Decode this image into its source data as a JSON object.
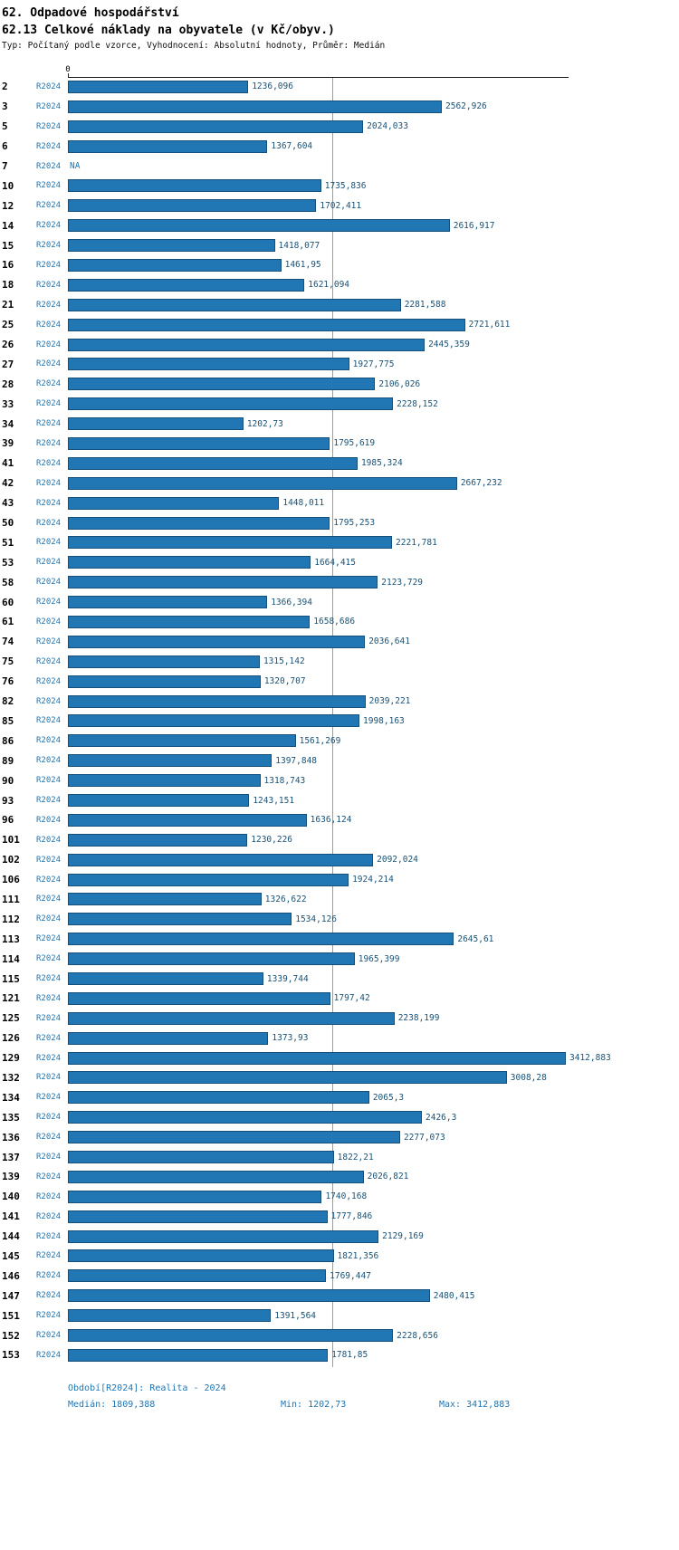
{
  "header": {
    "title": "62. Odpadové hospodářství",
    "subtitle": "62.13 Celkové náklady na obyvatele (v Kč/obyv.)",
    "meta": "Typ: Počítaný podle vzorce, Vyhodnocení: Absolutní hodnoty, Průměr: Medián"
  },
  "chart_data": {
    "type": "bar",
    "orientation": "horizontal",
    "title": "62.13 Celkové náklady na obyvatele (v Kč/obyv.)",
    "series_label": "R2024",
    "axis_zero_label": "0",
    "x_min": 0,
    "x_max": 3412.883,
    "median_value": 1809.388,
    "na_text": "NA",
    "bar_color": "#2077b4",
    "median_line_color": "#7ba7c7",
    "legend_position": "none",
    "grid": false,
    "rows": [
      {
        "id": "2",
        "value": 1236.096,
        "label": "1236,096"
      },
      {
        "id": "3",
        "value": 2562.926,
        "label": "2562,926"
      },
      {
        "id": "5",
        "value": 2024.033,
        "label": "2024,033"
      },
      {
        "id": "6",
        "value": 1367.604,
        "label": "1367,604"
      },
      {
        "id": "7",
        "value": null,
        "label": "NA"
      },
      {
        "id": "10",
        "value": 1735.836,
        "label": "1735,836"
      },
      {
        "id": "12",
        "value": 1702.411,
        "label": "1702,411"
      },
      {
        "id": "14",
        "value": 2616.917,
        "label": "2616,917"
      },
      {
        "id": "15",
        "value": 1418.077,
        "label": "1418,077"
      },
      {
        "id": "16",
        "value": 1461.95,
        "label": "1461,95"
      },
      {
        "id": "18",
        "value": 1621.094,
        "label": "1621,094"
      },
      {
        "id": "21",
        "value": 2281.588,
        "label": "2281,588"
      },
      {
        "id": "25",
        "value": 2721.611,
        "label": "2721,611"
      },
      {
        "id": "26",
        "value": 2445.359,
        "label": "2445,359"
      },
      {
        "id": "27",
        "value": 1927.775,
        "label": "1927,775"
      },
      {
        "id": "28",
        "value": 2106.026,
        "label": "2106,026"
      },
      {
        "id": "33",
        "value": 2228.152,
        "label": "2228,152"
      },
      {
        "id": "34",
        "value": 1202.73,
        "label": "1202,73"
      },
      {
        "id": "39",
        "value": 1795.619,
        "label": "1795,619"
      },
      {
        "id": "41",
        "value": 1985.324,
        "label": "1985,324"
      },
      {
        "id": "42",
        "value": 2667.232,
        "label": "2667,232"
      },
      {
        "id": "43",
        "value": 1448.011,
        "label": "1448,011"
      },
      {
        "id": "50",
        "value": 1795.253,
        "label": "1795,253"
      },
      {
        "id": "51",
        "value": 2221.781,
        "label": "2221,781"
      },
      {
        "id": "53",
        "value": 1664.415,
        "label": "1664,415"
      },
      {
        "id": "58",
        "value": 2123.729,
        "label": "2123,729"
      },
      {
        "id": "60",
        "value": 1366.394,
        "label": "1366,394"
      },
      {
        "id": "61",
        "value": 1658.686,
        "label": "1658,686"
      },
      {
        "id": "74",
        "value": 2036.641,
        "label": "2036,641"
      },
      {
        "id": "75",
        "value": 1315.142,
        "label": "1315,142"
      },
      {
        "id": "76",
        "value": 1320.707,
        "label": "1320,707"
      },
      {
        "id": "82",
        "value": 2039.221,
        "label": "2039,221"
      },
      {
        "id": "85",
        "value": 1998.163,
        "label": "1998,163"
      },
      {
        "id": "86",
        "value": 1561.269,
        "label": "1561,269"
      },
      {
        "id": "89",
        "value": 1397.848,
        "label": "1397,848"
      },
      {
        "id": "90",
        "value": 1318.743,
        "label": "1318,743"
      },
      {
        "id": "93",
        "value": 1243.151,
        "label": "1243,151"
      },
      {
        "id": "96",
        "value": 1636.124,
        "label": "1636,124"
      },
      {
        "id": "101",
        "value": 1230.226,
        "label": "1230,226"
      },
      {
        "id": "102",
        "value": 2092.024,
        "label": "2092,024"
      },
      {
        "id": "106",
        "value": 1924.214,
        "label": "1924,214"
      },
      {
        "id": "111",
        "value": 1326.622,
        "label": "1326,622"
      },
      {
        "id": "112",
        "value": 1534.126,
        "label": "1534,126"
      },
      {
        "id": "113",
        "value": 2645.61,
        "label": "2645,61"
      },
      {
        "id": "114",
        "value": 1965.399,
        "label": "1965,399"
      },
      {
        "id": "115",
        "value": 1339.744,
        "label": "1339,744"
      },
      {
        "id": "121",
        "value": 1797.42,
        "label": "1797,42"
      },
      {
        "id": "125",
        "value": 2238.199,
        "label": "2238,199"
      },
      {
        "id": "126",
        "value": 1373.93,
        "label": "1373,93"
      },
      {
        "id": "129",
        "value": 3412.883,
        "label": "3412,883"
      },
      {
        "id": "132",
        "value": 3008.28,
        "label": "3008,28"
      },
      {
        "id": "134",
        "value": 2065.3,
        "label": "2065,3"
      },
      {
        "id": "135",
        "value": 2426.3,
        "label": "2426,3"
      },
      {
        "id": "136",
        "value": 2277.073,
        "label": "2277,073"
      },
      {
        "id": "137",
        "value": 1822.21,
        "label": "1822,21"
      },
      {
        "id": "139",
        "value": 2026.821,
        "label": "2026,821"
      },
      {
        "id": "140",
        "value": 1740.168,
        "label": "1740,168"
      },
      {
        "id": "141",
        "value": 1777.846,
        "label": "1777,846"
      },
      {
        "id": "144",
        "value": 2129.169,
        "label": "2129,169"
      },
      {
        "id": "145",
        "value": 1821.356,
        "label": "1821,356"
      },
      {
        "id": "146",
        "value": 1769.447,
        "label": "1769,447"
      },
      {
        "id": "147",
        "value": 2480.415,
        "label": "2480,415"
      },
      {
        "id": "151",
        "value": 1391.564,
        "label": "1391,564"
      },
      {
        "id": "152",
        "value": 2228.656,
        "label": "2228,656"
      },
      {
        "id": "153",
        "value": 1781.85,
        "label": "1781,85"
      }
    ]
  },
  "footer": {
    "period": "Období[R2024]: Realita - 2024",
    "median": "Medián: 1809,388",
    "min": "Min: 1202,73",
    "max": "Max: 3412,883"
  }
}
